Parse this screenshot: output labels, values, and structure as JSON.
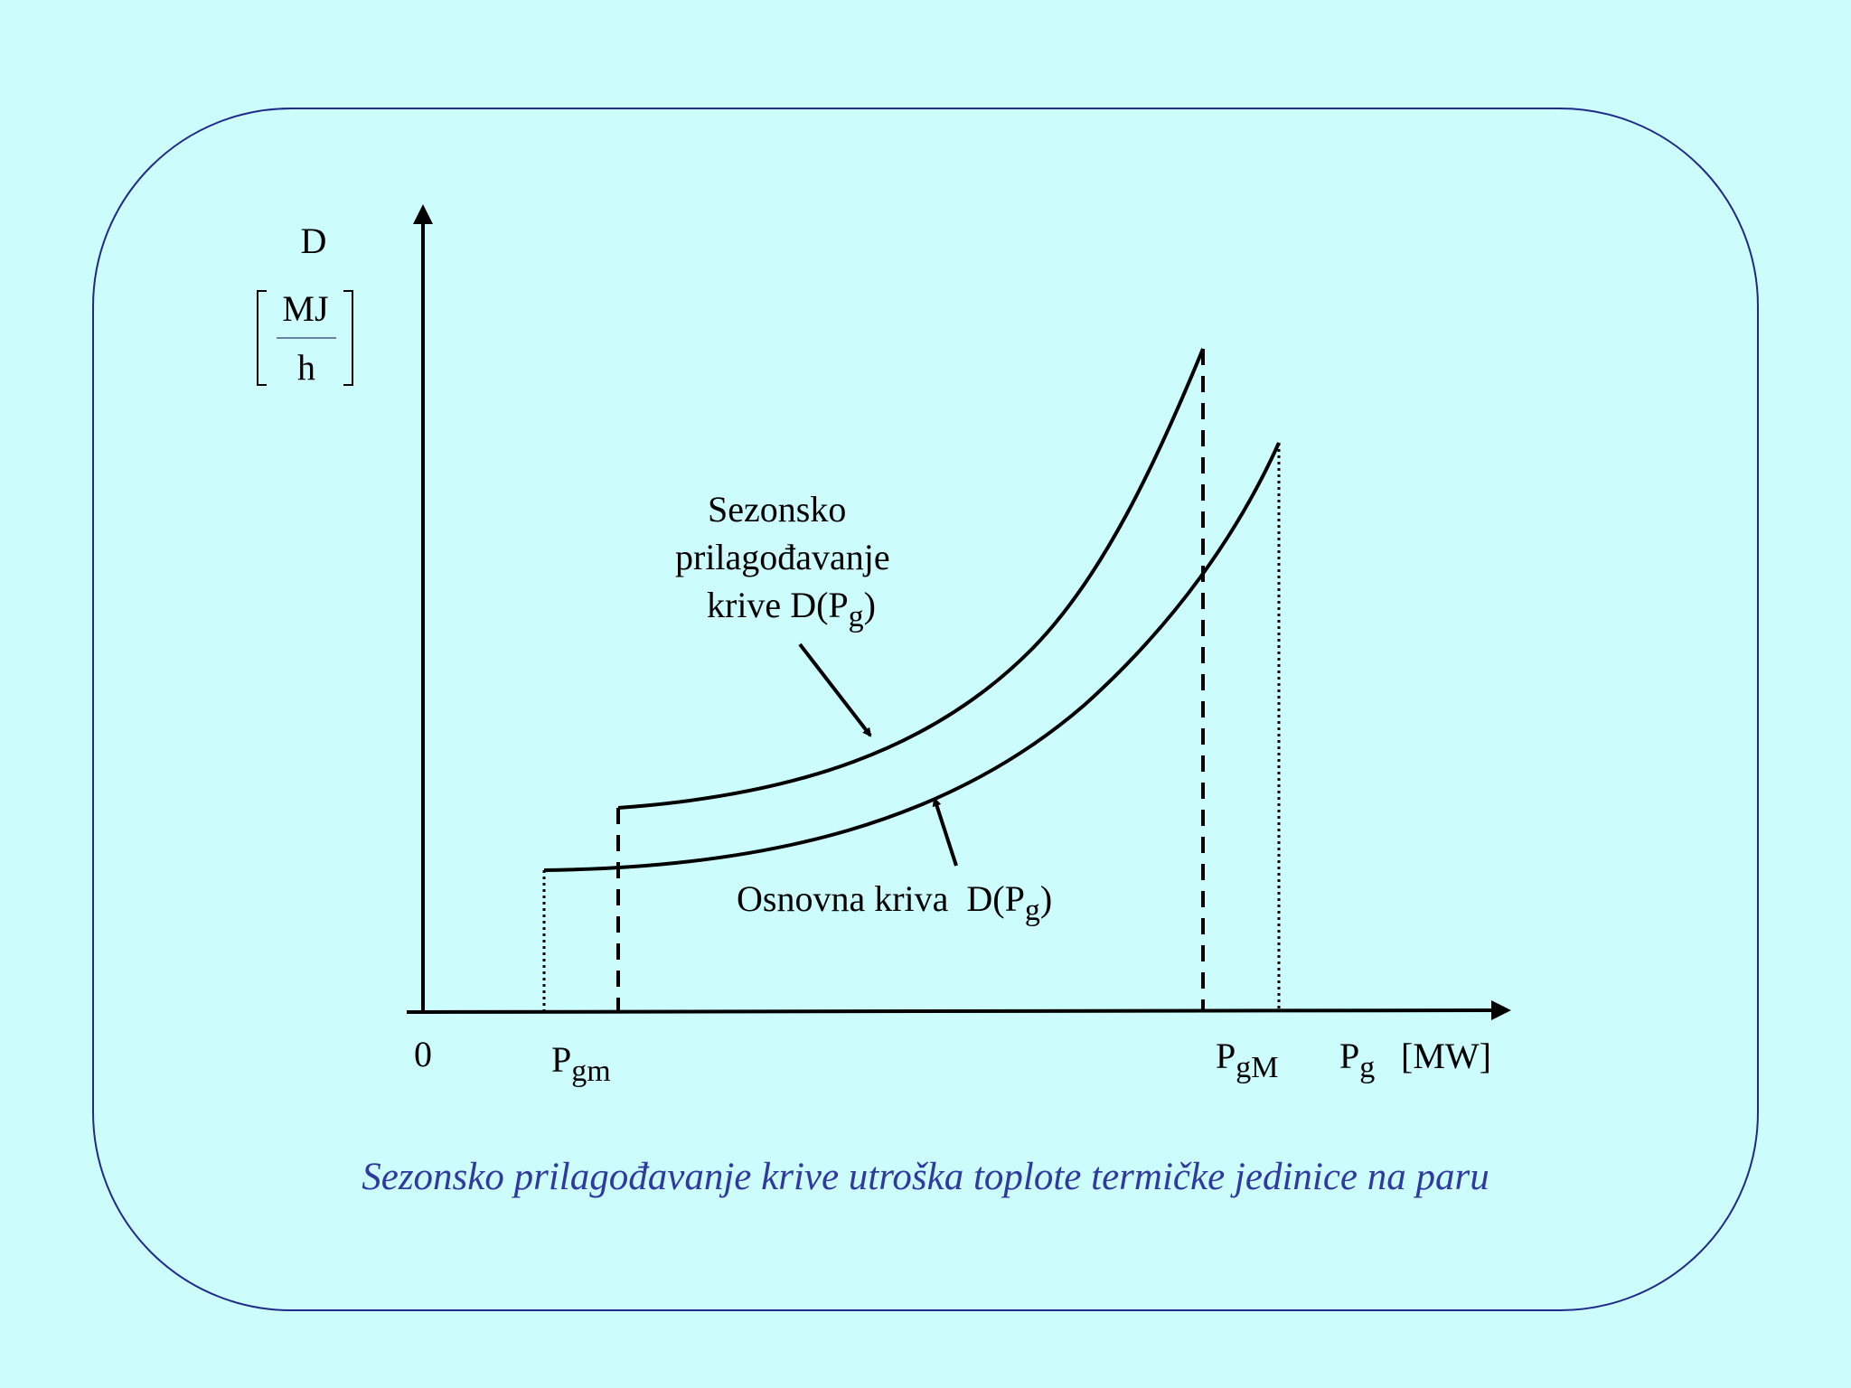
{
  "axes": {
    "y_label": "D",
    "y_unit_numerator": "MJ",
    "y_unit_denominator": "h",
    "origin_label": "0",
    "x_label_base": "P",
    "x_label_sub": "g",
    "x_unit": "[MW]"
  },
  "markers": {
    "p_gm_base": "P",
    "p_gm_sub": "gm",
    "p_gM_base": "P",
    "p_gM_sub": "gM"
  },
  "annotations": {
    "seasonal_line1": "Sezonsko",
    "seasonal_line2": "prilagođavanje",
    "seasonal_line3_prefix": "krive D(P",
    "seasonal_line3_sub": "g",
    "seasonal_line3_suffix": ")",
    "base_prefix": "Osnovna kriva  D(P",
    "base_sub": "g",
    "base_suffix": ")"
  },
  "caption": "Sezonsko prilagođavanje krive utroška toplote termičke jedinice na paru",
  "colors": {
    "background": "#ccfcfc",
    "frame": "#1f2a8a",
    "caption": "#2f3aa0",
    "lines": "#000000"
  }
}
